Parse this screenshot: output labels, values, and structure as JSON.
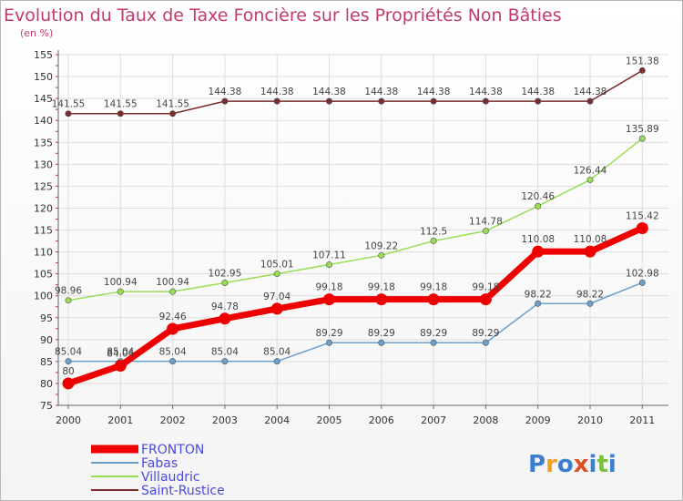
{
  "chart_data": {
    "type": "line",
    "title": "Evolution du Taux de Taxe Foncière sur les Propriétés Non Bâties",
    "unit_label": "(en %)",
    "x": [
      "2000",
      "2001",
      "2002",
      "2003",
      "2004",
      "2005",
      "2006",
      "2007",
      "2008",
      "2009",
      "2010",
      "2011"
    ],
    "ylim": [
      75,
      155
    ],
    "yticks": [
      75,
      80,
      85,
      90,
      95,
      100,
      105,
      110,
      115,
      120,
      125,
      130,
      135,
      140,
      145,
      150,
      155
    ],
    "grid": true,
    "series": [
      {
        "name": "Saint-Rustice",
        "color": "#7b2c2c",
        "values": [
          141.55,
          141.55,
          141.55,
          144.38,
          144.38,
          144.38,
          144.38,
          144.38,
          144.38,
          144.38,
          144.38,
          151.38
        ],
        "labels": [
          "141.55",
          "141.55",
          "141.55",
          "144.38",
          "144.38",
          "144.38",
          "144.38",
          "144.38",
          "144.38",
          "144.38",
          "144.38",
          "151.38"
        ]
      },
      {
        "name": "Villaudric",
        "color": "#99dd55",
        "values": [
          98.96,
          100.94,
          100.94,
          102.95,
          105.01,
          107.11,
          109.22,
          112.5,
          114.78,
          120.46,
          126.44,
          135.89
        ],
        "labels": [
          "98.96",
          "100.94",
          "100.94",
          "102.95",
          "105.01",
          "107.11",
          "109.22",
          "112.5",
          "114.78",
          "120.46",
          "126.44",
          "135.89"
        ]
      },
      {
        "name": "Fabas",
        "color": "#6b9fcc",
        "values": [
          85.04,
          85.04,
          85.04,
          85.04,
          85.04,
          89.29,
          89.29,
          89.29,
          89.29,
          98.22,
          98.22,
          102.98
        ],
        "labels": [
          "85.04",
          "85.04",
          "85.04",
          "85.04",
          "85.04",
          "89.29",
          "89.29",
          "89.29",
          "89.29",
          "98.22",
          "98.22",
          "102.98"
        ]
      },
      {
        "name": "FRONTON",
        "color": "#ee0000",
        "values": [
          80,
          84.04,
          92.46,
          94.78,
          97.04,
          99.18,
          99.18,
          99.18,
          99.18,
          110.08,
          110.08,
          115.42
        ],
        "labels": [
          "80",
          "84.04",
          "92.46",
          "94.78",
          "97.04",
          "99.18",
          "99.18",
          "99.18",
          "99.18",
          "110.08",
          "110.08",
          "115.42"
        ]
      }
    ],
    "legend": {
      "placement": "bottom-left",
      "entries": [
        "FRONTON",
        "Fabas",
        "Villaudric",
        "Saint-Rustice"
      ]
    }
  },
  "logo": {
    "text": "Proxiti"
  }
}
